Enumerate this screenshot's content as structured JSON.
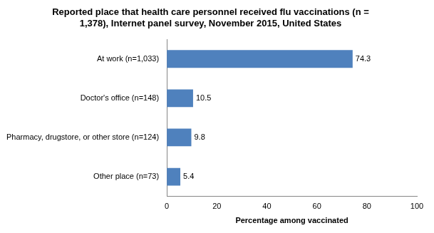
{
  "chart_data": {
    "type": "bar",
    "orientation": "horizontal",
    "title": [
      "Reported place that health care personnel received flu vaccinations (n =",
      "1,378), Internet panel survey, November 2015, United States"
    ],
    "x_label": "Percentage among vaccinated",
    "categories": [
      "At work (n=1,033)",
      "Doctor's office (n=148)",
      "Pharmacy, drugstore, or other store (n=124)",
      "Other place (n=73)"
    ],
    "values": [
      74.3,
      10.5,
      9.8,
      5.4
    ],
    "color": "#4f81bd",
    "xlim": [
      0,
      100
    ],
    "xticks": [
      0,
      20,
      40,
      60,
      80,
      100
    ],
    "grid": false,
    "data_labels": true
  }
}
